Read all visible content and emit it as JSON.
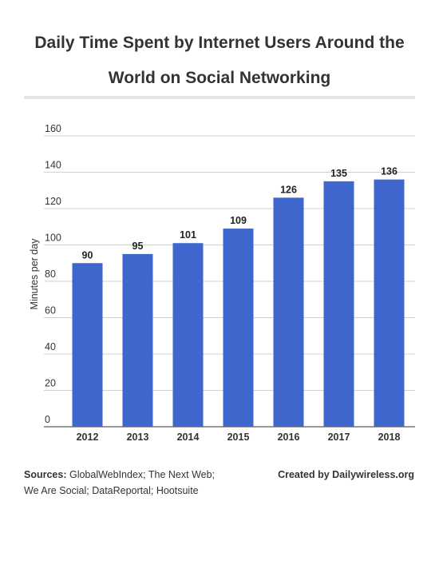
{
  "chart_data": {
    "type": "bar",
    "title": "Daily Time Spent by Internet Users Around the World on Social Networking",
    "categories": [
      "2012",
      "2013",
      "2014",
      "2015",
      "2016",
      "2017",
      "2018"
    ],
    "values": [
      90,
      95,
      101,
      109,
      126,
      135,
      136
    ],
    "xlabel": "",
    "ylabel": "Minutes per day",
    "ylim": [
      0,
      160
    ],
    "yticks": [
      0,
      20,
      40,
      60,
      80,
      100,
      120,
      140,
      160
    ],
    "grid": true,
    "legend": "none",
    "bar_color": "#3f66cc",
    "data_labels": true
  },
  "footer": {
    "sources_label": "Sources:",
    "sources_text": " GlobalWebIndex; The Next Web; We Are Social; DataReportal; Hootsuite",
    "credit": "Created by Dailywireless.org"
  }
}
